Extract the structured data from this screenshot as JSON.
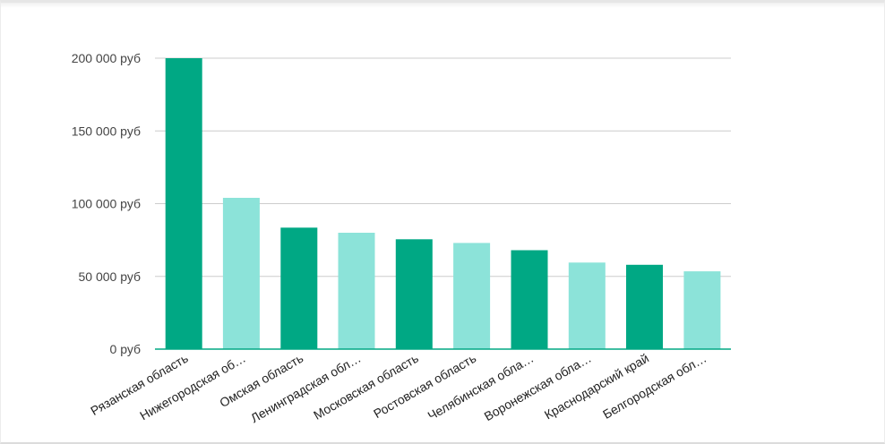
{
  "chart_data": {
    "type": "bar",
    "categories": [
      "Рязанская область",
      "Нижегородская об…",
      "Омская область",
      "Ленинградская обл…",
      "Московская область",
      "Ростовская область",
      "Челябинская обла…",
      "Воронежская обла…",
      "Краснодарский край",
      "Белгородская обл…"
    ],
    "values": [
      200000,
      104000,
      83500,
      80000,
      75500,
      73000,
      68000,
      59500,
      58000,
      53500
    ],
    "ylim": [
      0,
      200000
    ],
    "yticks": [
      0,
      50000,
      100000,
      150000,
      200000
    ],
    "ytick_labels": [
      "0 руб",
      "50 000 руб",
      "100 000 руб",
      "150 000 руб",
      "200 000 руб"
    ],
    "title": "",
    "xlabel": "",
    "ylabel": "",
    "grid": true,
    "colors": [
      "#00a884",
      "#8ce3d9"
    ]
  }
}
